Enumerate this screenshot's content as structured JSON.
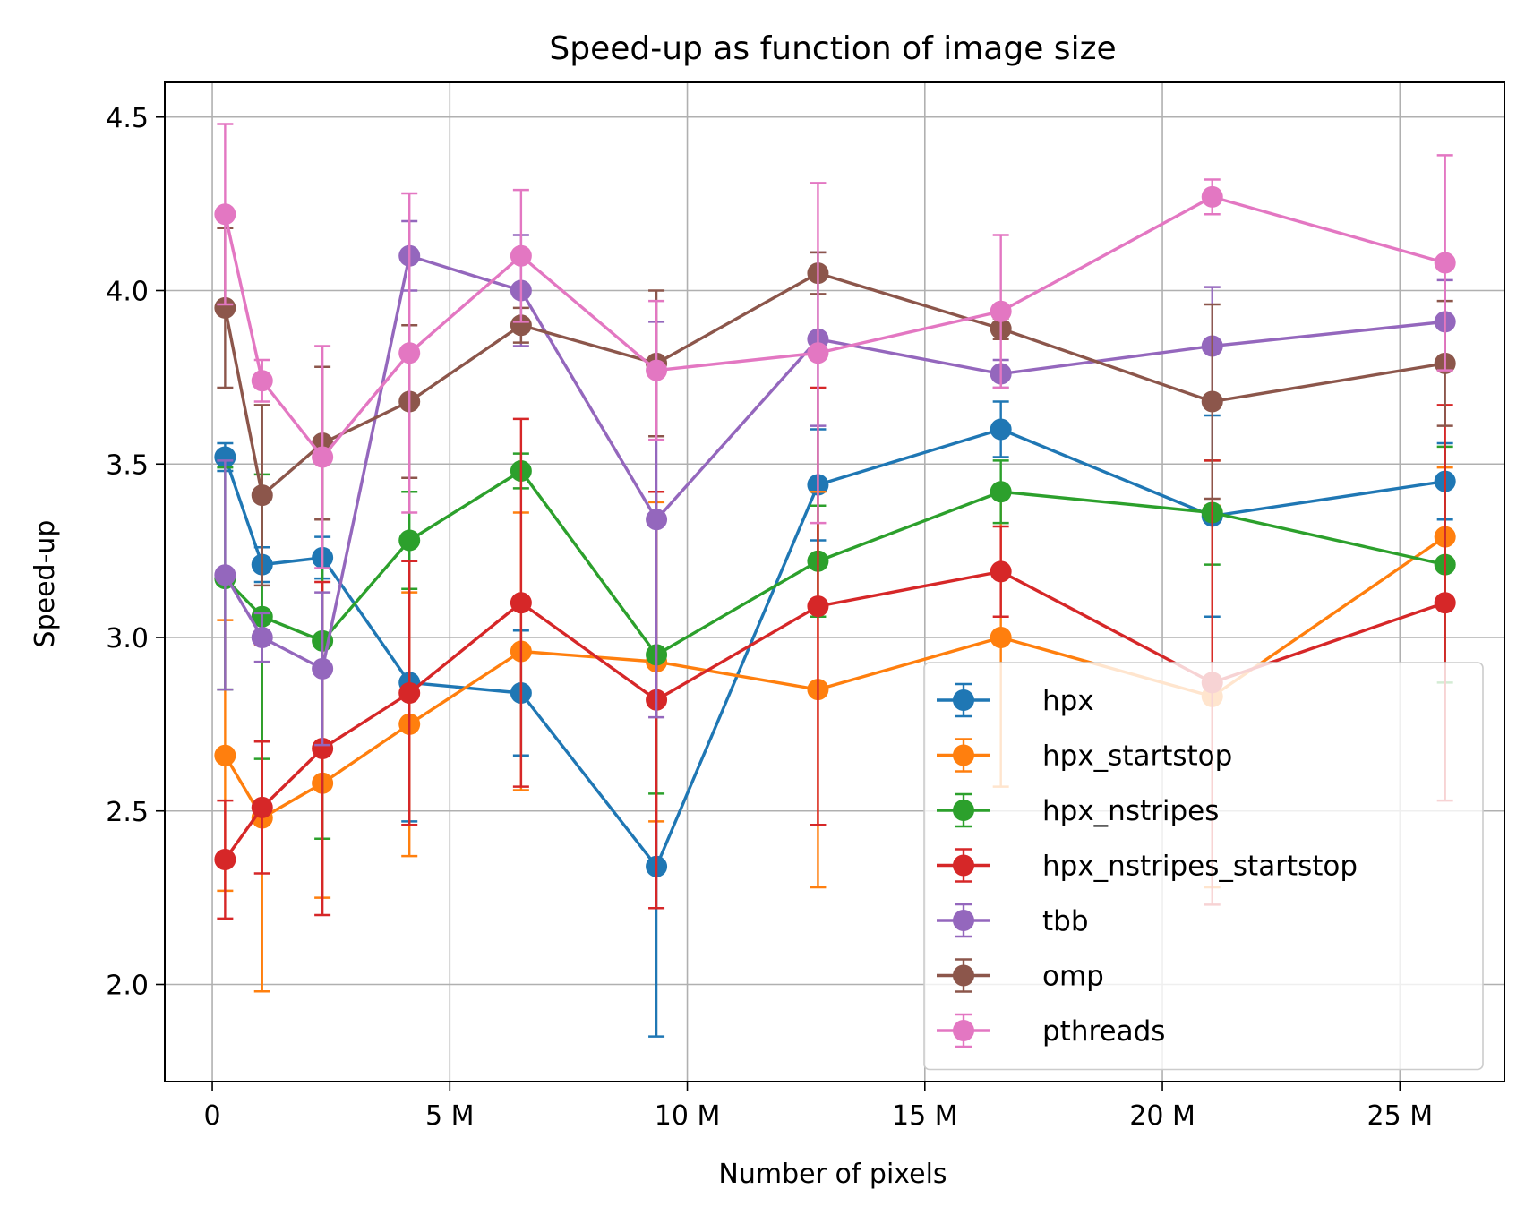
{
  "chart_data": {
    "type": "line",
    "error_bars": true,
    "title": "Speed-up as function of image size",
    "xlabel": "Number of pixels",
    "ylabel": "Speed-up",
    "xlim": [
      -1.0,
      27.2
    ],
    "ylim": [
      1.72,
      4.6
    ],
    "xtick_values": [
      0,
      5,
      10,
      15,
      20,
      25
    ],
    "xtick_labels": [
      "0",
      "5 M",
      "10 M",
      "15 M",
      "20 M",
      "25 M"
    ],
    "ytick_values": [
      2.0,
      2.5,
      3.0,
      3.5,
      4.0,
      4.5
    ],
    "ytick_labels": [
      "2.0",
      "2.5",
      "3.0",
      "3.5",
      "4.0",
      "4.5"
    ],
    "grid": true,
    "legend_position": "lower-right",
    "x": [
      0.27,
      1.05,
      2.32,
      4.15,
      6.5,
      9.35,
      12.75,
      16.6,
      21.05,
      25.95
    ],
    "series": [
      {
        "name": "hpx",
        "color": "#1f77b4",
        "values": [
          3.52,
          3.21,
          3.23,
          2.87,
          2.84,
          2.34,
          3.44,
          3.6,
          3.35,
          3.45
        ],
        "errors": [
          0.04,
          0.05,
          0.06,
          0.4,
          0.18,
          0.49,
          0.16,
          0.08,
          0.29,
          0.11
        ]
      },
      {
        "name": "hpx_startstop",
        "color": "#ff7f0e",
        "values": [
          2.66,
          2.48,
          2.58,
          2.75,
          2.96,
          2.93,
          2.85,
          3.0,
          2.83,
          3.29
        ],
        "errors": [
          0.39,
          0.5,
          0.33,
          0.38,
          0.4,
          0.46,
          0.57,
          0.43,
          0.55,
          0.2
        ]
      },
      {
        "name": "hpx_nstripes",
        "color": "#2ca02c",
        "values": [
          3.17,
          3.06,
          2.99,
          3.28,
          3.48,
          2.95,
          3.22,
          3.42,
          3.36,
          3.21
        ],
        "errors": [
          0.32,
          0.41,
          0.57,
          0.14,
          0.05,
          0.4,
          0.16,
          0.09,
          0.15,
          0.34
        ]
      },
      {
        "name": "hpx_nstripes_startstop",
        "color": "#d62728",
        "values": [
          2.36,
          2.51,
          2.68,
          2.84,
          3.1,
          2.82,
          3.09,
          3.19,
          2.87,
          3.1
        ],
        "errors": [
          0.17,
          0.19,
          0.48,
          0.38,
          0.53,
          0.6,
          0.63,
          0.13,
          0.64,
          0.57
        ]
      },
      {
        "name": "tbb",
        "color": "#9467bd",
        "values": [
          3.18,
          3.0,
          2.91,
          4.1,
          4.0,
          3.34,
          3.86,
          3.76,
          3.84,
          3.91
        ],
        "errors": [
          0.33,
          0.07,
          0.22,
          0.1,
          0.16,
          0.57,
          0.25,
          0.04,
          0.17,
          0.12
        ]
      },
      {
        "name": "omp",
        "color": "#8c564b",
        "values": [
          3.95,
          3.41,
          3.56,
          3.68,
          3.9,
          3.79,
          4.05,
          3.89,
          3.68,
          3.79
        ],
        "errors": [
          0.23,
          0.26,
          0.22,
          0.22,
          0.05,
          0.21,
          0.06,
          0.03,
          0.28,
          0.18
        ]
      },
      {
        "name": "pthreads",
        "color": "#e377c2",
        "values": [
          4.22,
          3.74,
          3.52,
          3.82,
          4.1,
          3.77,
          3.82,
          3.94,
          4.27,
          4.08
        ],
        "errors": [
          0.26,
          0.06,
          0.32,
          0.46,
          0.19,
          0.2,
          0.49,
          0.22,
          0.05,
          0.31
        ]
      }
    ]
  }
}
